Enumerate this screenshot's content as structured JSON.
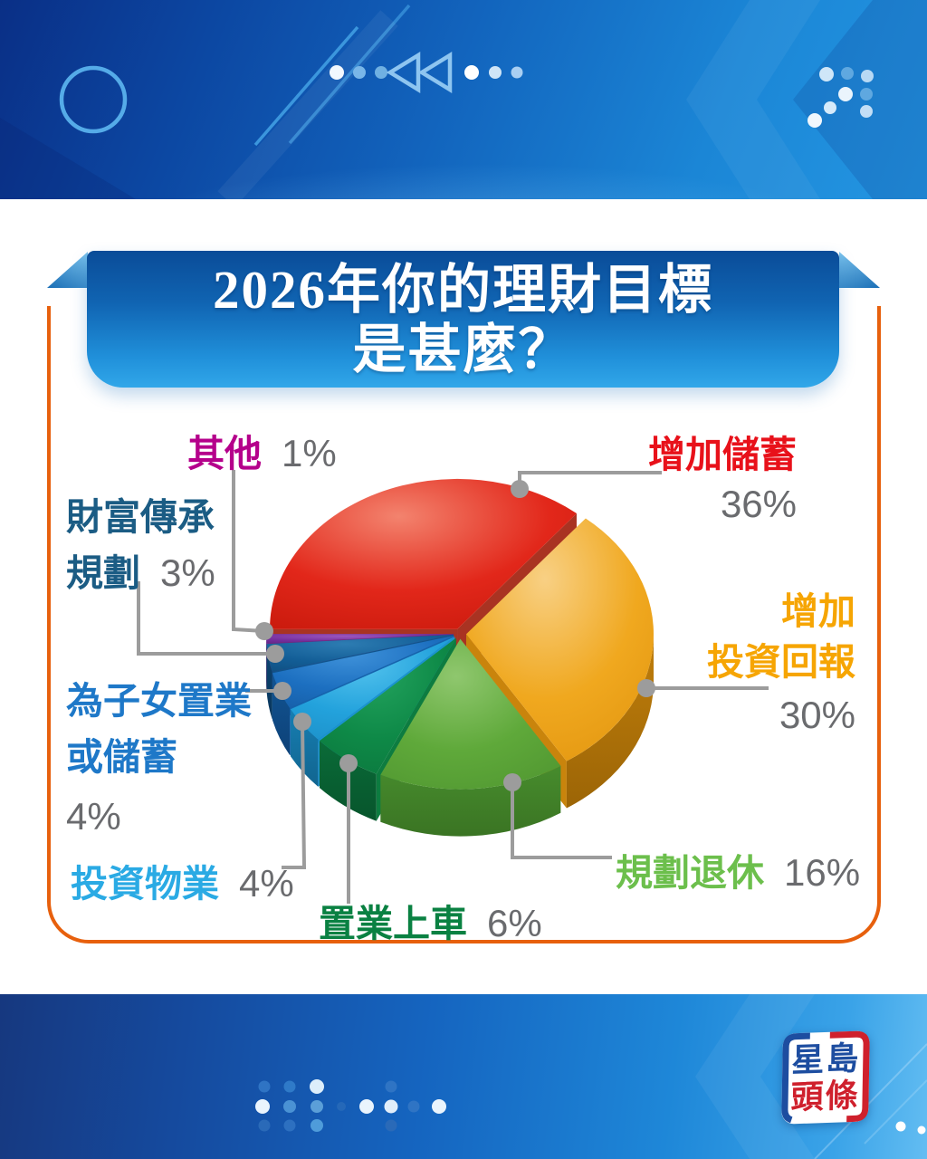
{
  "title": {
    "line1": "2026年你的理財目標",
    "line2": "是甚麼？"
  },
  "chart_data": {
    "type": "pie",
    "title": "2026年你的理財目標是甚麼？",
    "unit": "%",
    "order": "clockwise starting at 9 o'clock",
    "legend_position": "around",
    "slices": [
      {
        "id": "increase_savings",
        "label": "增加儲蓄",
        "value": 36,
        "pct": "36%",
        "color": "#e8111a",
        "pie": {
          "hi": "#f3836e",
          "top": "#e2271a",
          "dark": "#c4170a",
          "wall": "#9c130b",
          "wall2": "#7f0e06",
          "face": "#a93322"
        }
      },
      {
        "id": "increase_investment_return",
        "label": "增加投資回報",
        "value": 30,
        "pct": "30%",
        "color": "#f6a503",
        "label_lines": [
          "增加",
          "投資回報"
        ],
        "pie": {
          "hi": "#f8d084",
          "top": "#f0a81f",
          "dark": "#e0930d",
          "wall": "#c07e0b",
          "wall2": "#9c6506",
          "face": "#c9840c"
        }
      },
      {
        "id": "retirement_planning",
        "label": "規劃退休",
        "value": 16,
        "pct": "16%",
        "color": "#6cbf4c",
        "pie": {
          "hi": "#8fc76e",
          "top": "#5fa93a",
          "dark": "#4f9530",
          "wall": "#478c2d",
          "wall2": "#3a7423",
          "face": "#4c9330"
        }
      },
      {
        "id": "first_home",
        "label": "置業上車",
        "value": 6,
        "pct": "6%",
        "color": "#0a8142",
        "pie": {
          "hi": "#23a35e",
          "top": "#0e8947",
          "dark": "#0b733b",
          "wall": "#0a6b38",
          "wall2": "#07552c",
          "face": "#0d7c40"
        }
      },
      {
        "id": "investment_property",
        "label": "投資物業",
        "value": 4,
        "pct": "4%",
        "color": "#2aaae4",
        "pie": {
          "hi": "#55c4ee",
          "top": "#23a2dc",
          "dark": "#1b8cc4",
          "wall": "#177eb2",
          "wall2": "#116590",
          "face": "#1b93cf"
        }
      },
      {
        "id": "children_home_or_savings",
        "label": "為子女置業或儲蓄",
        "value": 4,
        "pct": "4%",
        "color": "#1e78c8",
        "label_lines": [
          "為子女置業",
          "或儲蓄"
        ],
        "pie": {
          "hi": "#3f92da",
          "top": "#1c6fc0",
          "dark": "#155ba2",
          "wall": "#125493",
          "wall2": "#0d4278",
          "face": "#1663ad"
        }
      },
      {
        "id": "wealth_legacy_planning",
        "label": "財富傳承規劃",
        "value": 3,
        "pct": "3%",
        "color": "#1b5c84",
        "label_lines": [
          "財富傳承",
          "規劃"
        ],
        "pie": {
          "hi": "#2d7cb2",
          "top": "#135e97",
          "dark": "#0e4c7c",
          "wall": "#0d4673",
          "wall2": "#09365c",
          "face": "#0f558c"
        }
      },
      {
        "id": "other",
        "label": "其他",
        "value": 1,
        "pct": "1%",
        "color": "#b5008b",
        "pie": {
          "hi": "#9a56bd",
          "top": "#762f9e",
          "dark": "#622384",
          "wall": "#571e77",
          "wall2": "#44175e",
          "face": "#662689"
        }
      }
    ]
  },
  "colors": {
    "percent_text": "#6a6b6e",
    "leader_line": "#9c9c9c",
    "frame_border": "#e7600d",
    "banner_blue_top": "#0a4c98",
    "banner_blue_bottom": "#31a7e9",
    "logo_blue": "#1d4da0",
    "logo_red": "#cf202c"
  },
  "footer": {
    "logo": {
      "line1": "星島",
      "line2": "頭條"
    }
  },
  "decorations": {
    "header_icons": [
      "circle-outline-icon",
      "slash-lines-icon",
      "rewind-triangles-icon",
      "dots-row-icon",
      "dots-arrow-cluster-icon"
    ],
    "footer_icons": [
      "dots-grid-icon",
      "chevron-lines-icon",
      "sing-tao-logo"
    ]
  }
}
